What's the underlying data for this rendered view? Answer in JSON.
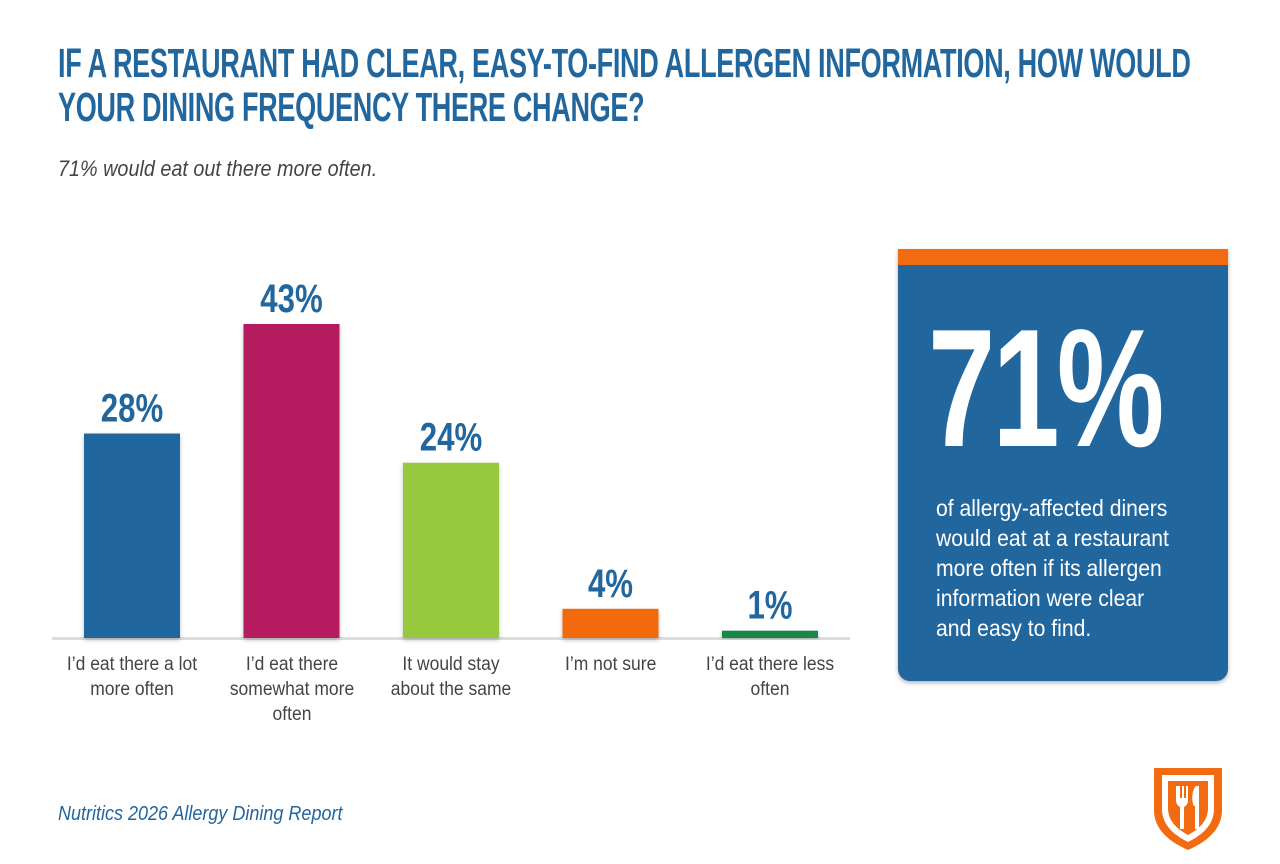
{
  "chart_data": {
    "type": "bar",
    "title": [
      "IF A RESTAURANT HAD CLEAR, EASY-TO-FIND ALLERGEN INFORMATION, HOW WOULD",
      "YOUR DINING FREQUENCY THERE CHANGE?"
    ],
    "subtitle": "71% would eat out there more often.",
    "categories": [
      "I’d eat there a lot more often",
      "I’d eat there somewhat more often",
      "It would stay about the same",
      "I’m not sure",
      "I’d eat there less often"
    ],
    "values": [
      28,
      43,
      24,
      4,
      1
    ],
    "value_labels": [
      "28%",
      "43%",
      "24%",
      "4%",
      "1%"
    ],
    "colors": [
      "#22669e",
      "#b41a5e",
      "#96c93d",
      "#f26b11",
      "#16894a"
    ],
    "callout": {
      "stat": "71%",
      "text": "of allergy-affected diners would eat at a restaurant more often if its allergen information were clear and easy to find."
    },
    "source": "Nutritics 2026 Allergy Dining Report"
  }
}
